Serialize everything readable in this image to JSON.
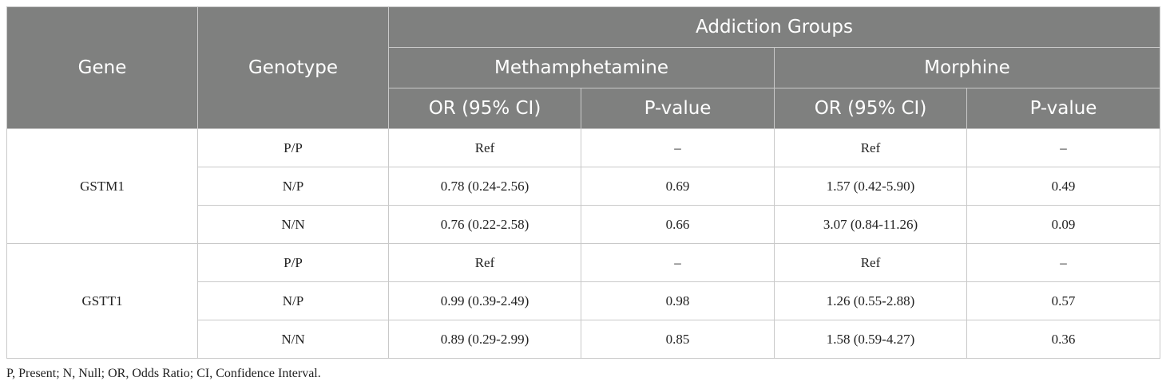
{
  "table": {
    "headers": {
      "gene": "Gene",
      "genotype": "Genotype",
      "group_title": "Addiction Groups",
      "groups": [
        "Methamphetamine",
        "Morphine"
      ],
      "or_label": "OR (95% CI)",
      "p_label": "P-value"
    },
    "genes": [
      {
        "name": "GSTM1",
        "rows": [
          {
            "genotype": "P/P",
            "meth_or": "Ref",
            "meth_p": "–",
            "morph_or": "Ref",
            "morph_p": "–"
          },
          {
            "genotype": "N/P",
            "meth_or": "0.78 (0.24-2.56)",
            "meth_p": "0.69",
            "morph_or": "1.57 (0.42-5.90)",
            "morph_p": "0.49"
          },
          {
            "genotype": "N/N",
            "meth_or": "0.76 (0.22-2.58)",
            "meth_p": "0.66",
            "morph_or": "3.07 (0.84-11.26)",
            "morph_p": "0.09"
          }
        ]
      },
      {
        "name": "GSTT1",
        "rows": [
          {
            "genotype": "P/P",
            "meth_or": "Ref",
            "meth_p": "–",
            "morph_or": "Ref",
            "morph_p": "–"
          },
          {
            "genotype": "N/P",
            "meth_or": "0.99 (0.39-2.49)",
            "meth_p": "0.98",
            "morph_or": "1.26 (0.55-2.88)",
            "morph_p": "0.57"
          },
          {
            "genotype": "N/N",
            "meth_or": "0.89 (0.29-2.99)",
            "meth_p": "0.85",
            "morph_or": "1.58 (0.59-4.27)",
            "morph_p": "0.36"
          }
        ]
      }
    ]
  },
  "footnote": "P, Present; N,  Null; OR, Odds Ratio; CI, Confidence Interval."
}
